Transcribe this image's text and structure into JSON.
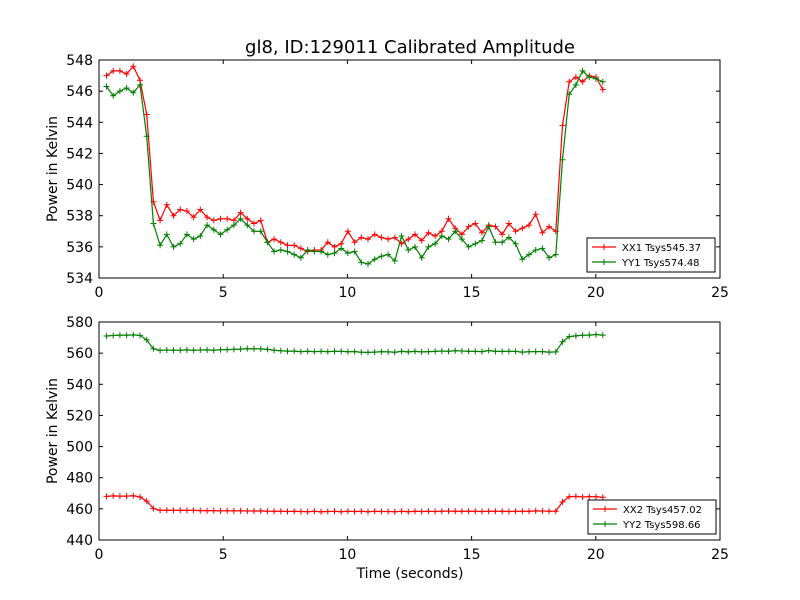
{
  "chart_data": [
    {
      "type": "line",
      "title": "gl8, ID:129011 Calibrated Amplitude",
      "xlabel": "",
      "ylabel": "Power in Kelvin",
      "xlim": [
        0,
        25
      ],
      "ylim": [
        534,
        548
      ],
      "xticks": [
        0,
        5,
        10,
        15,
        20,
        25
      ],
      "yticks": [
        534,
        536,
        538,
        540,
        542,
        544,
        546,
        548
      ],
      "grid": false,
      "legend_position": "lower-right",
      "series": [
        {
          "name": "XX1 Tsys545.37",
          "color": "#ff0000",
          "values": [
            547.0,
            547.3,
            547.3,
            547.1,
            547.6,
            546.7,
            544.5,
            538.9,
            537.7,
            538.7,
            538.0,
            538.4,
            538.3,
            537.9,
            538.4,
            537.9,
            537.7,
            537.8,
            537.8,
            537.7,
            538.2,
            537.8,
            537.5,
            537.7,
            536.3,
            536.5,
            536.3,
            536.1,
            536.1,
            535.9,
            535.7,
            535.8,
            535.8,
            536.3,
            536.0,
            536.2,
            537.0,
            536.3,
            536.6,
            536.5,
            536.8,
            536.6,
            536.5,
            536.6,
            536.2,
            536.5,
            536.8,
            536.4,
            536.9,
            536.7,
            537.0,
            537.8,
            537.2,
            536.8,
            537.3,
            537.5,
            536.9,
            537.4,
            537.3,
            536.8,
            537.5,
            537.0,
            537.2,
            537.4,
            538.1,
            536.9,
            537.3,
            537.0,
            543.8,
            546.6,
            546.9,
            546.6,
            547.0,
            546.9,
            546.1
          ]
        },
        {
          "name": "YY1 Tsys574.48",
          "color": "#007f00",
          "values": [
            546.3,
            545.7,
            546.0,
            546.2,
            545.9,
            546.4,
            543.1,
            537.5,
            536.1,
            536.8,
            536.0,
            536.2,
            536.8,
            536.5,
            536.7,
            537.4,
            537.1,
            536.8,
            537.1,
            537.4,
            537.8,
            537.4,
            537.0,
            537.0,
            536.3,
            535.7,
            535.8,
            535.7,
            535.5,
            535.3,
            535.8,
            535.7,
            535.7,
            535.5,
            535.6,
            535.9,
            535.6,
            535.7,
            535.0,
            534.9,
            535.2,
            535.4,
            535.5,
            535.1,
            536.7,
            535.8,
            536.0,
            535.3,
            536.0,
            536.2,
            536.7,
            536.5,
            537.0,
            536.5,
            536.0,
            536.2,
            536.4,
            537.3,
            536.3,
            536.3,
            536.6,
            536.2,
            535.2,
            535.5,
            535.8,
            535.9,
            535.3,
            535.5,
            541.6,
            545.8,
            546.4,
            547.3,
            546.9,
            546.8,
            546.6
          ]
        }
      ]
    },
    {
      "type": "line",
      "title": "",
      "xlabel": "Time (seconds)",
      "ylabel": "Power in Kelvin",
      "xlim": [
        0,
        25
      ],
      "ylim": [
        440,
        580
      ],
      "xticks": [
        0,
        5,
        10,
        15,
        20,
        25
      ],
      "yticks": [
        440,
        460,
        480,
        500,
        520,
        540,
        560,
        580
      ],
      "grid": false,
      "legend_position": "lower-right",
      "series": [
        {
          "name": "XX2 Tsys457.02",
          "color": "#ff0000",
          "values": [
            468.0,
            468.3,
            468.2,
            468.2,
            468.4,
            467.6,
            465.0,
            460.2,
            459.0,
            459.2,
            459.0,
            459.1,
            459.0,
            459.0,
            458.9,
            458.8,
            458.9,
            458.7,
            458.8,
            458.7,
            458.8,
            458.6,
            458.6,
            458.7,
            458.5,
            458.4,
            458.5,
            458.3,
            458.4,
            458.3,
            458.2,
            458.4,
            458.1,
            458.3,
            458.4,
            458.2,
            458.5,
            458.3,
            458.4,
            458.2,
            458.4,
            458.3,
            458.3,
            458.2,
            458.4,
            458.2,
            458.4,
            458.3,
            458.4,
            458.3,
            458.5,
            458.6,
            458.4,
            458.4,
            458.5,
            458.4,
            458.3,
            458.5,
            458.4,
            458.5,
            458.3,
            458.4,
            458.5,
            458.4,
            458.7,
            458.6,
            458.5,
            458.5,
            464.5,
            467.8,
            468.0,
            467.6,
            467.9,
            467.8,
            467.4
          ]
        },
        {
          "name": "YY2 Tsys598.66",
          "color": "#007f00",
          "values": [
            571.0,
            571.3,
            571.6,
            571.5,
            571.7,
            571.4,
            568.5,
            562.8,
            561.7,
            562.0,
            561.8,
            561.9,
            562.1,
            561.8,
            562.0,
            562.1,
            561.9,
            562.2,
            562.3,
            562.4,
            562.6,
            562.9,
            562.8,
            562.7,
            562.4,
            561.9,
            561.5,
            561.3,
            561.3,
            561.0,
            561.2,
            561.0,
            561.1,
            561.0,
            561.2,
            561.1,
            560.9,
            561.0,
            560.6,
            560.5,
            560.7,
            560.9,
            560.8,
            560.6,
            561.1,
            560.8,
            561.1,
            560.8,
            561.0,
            561.1,
            561.4,
            561.2,
            561.6,
            561.4,
            561.2,
            561.1,
            561.0,
            561.7,
            561.1,
            561.1,
            561.2,
            561.1,
            560.7,
            560.9,
            561.0,
            561.0,
            560.7,
            560.8,
            567.3,
            570.6,
            571.1,
            571.5,
            571.6,
            572.0,
            571.6
          ]
        }
      ]
    }
  ]
}
